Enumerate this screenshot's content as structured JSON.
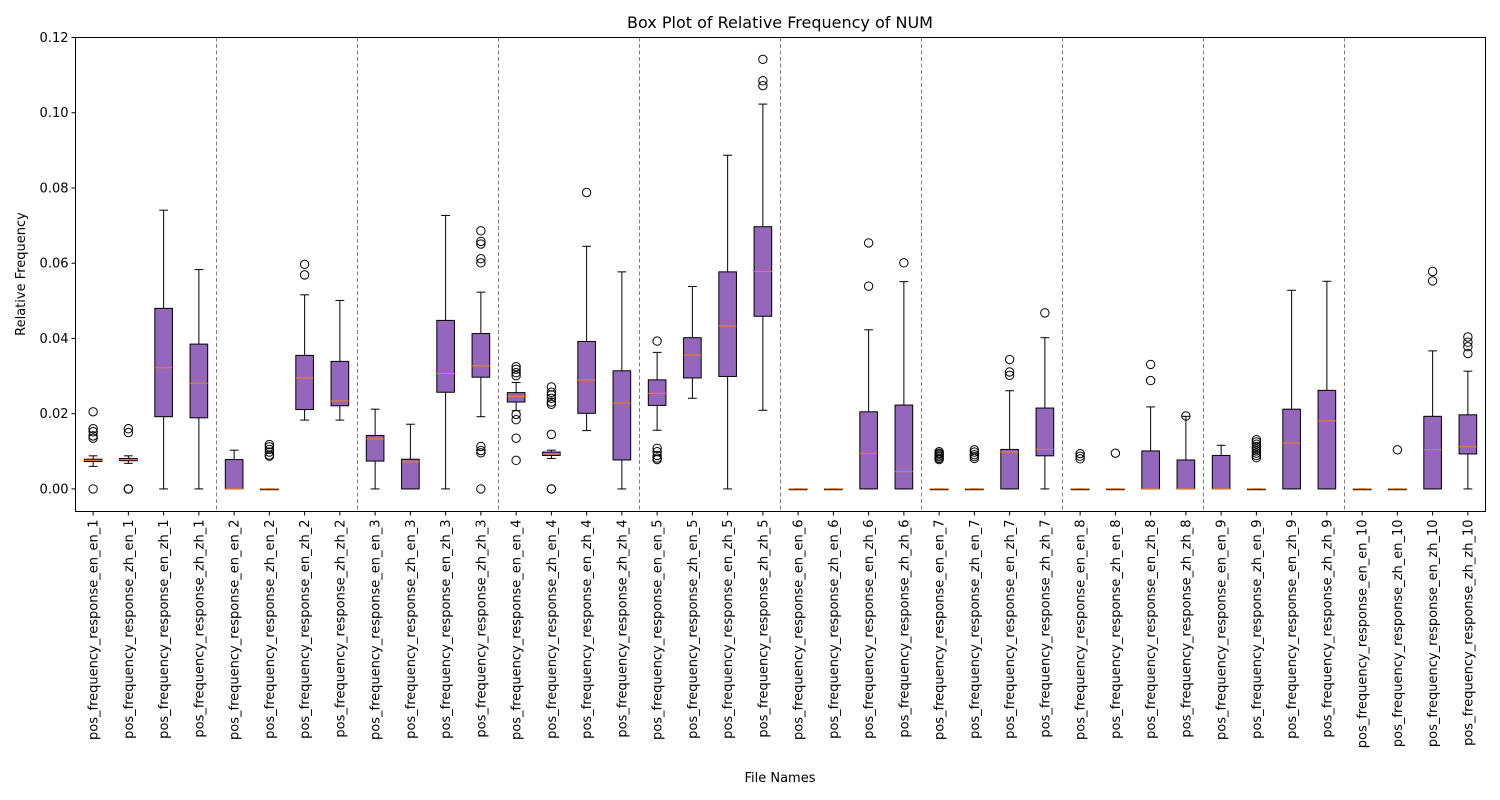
{
  "chart_data": {
    "type": "box",
    "title": "Box Plot of Relative Frequency of NUM",
    "xlabel": "File Names",
    "ylabel": "Relative Frequency",
    "ylim": [
      -0.006,
      0.12
    ],
    "yticks": [
      0.0,
      0.02,
      0.04,
      0.06,
      0.08,
      0.1,
      0.12
    ],
    "ytick_labels": [
      "0.00",
      "0.02",
      "0.04",
      "0.06",
      "0.08",
      "0.10",
      "0.12"
    ],
    "group_separators_after": [
      4,
      8,
      12,
      16,
      20,
      24,
      28,
      32,
      36
    ],
    "grid": false,
    "colors": {
      "box_fill": "#9467bd",
      "median": "#ff7f0e",
      "separator": "#808080"
    },
    "categories": [
      "pos_frequency_response_en_en_1",
      "pos_frequency_response_zh_en_1",
      "pos_frequency_response_en_zh_1",
      "pos_frequency_response_zh_zh_1",
      "pos_frequency_response_en_en_2",
      "pos_frequency_response_zh_en_2",
      "pos_frequency_response_en_zh_2",
      "pos_frequency_response_zh_zh_2",
      "pos_frequency_response_en_en_3",
      "pos_frequency_response_zh_en_3",
      "pos_frequency_response_en_zh_3",
      "pos_frequency_response_zh_zh_3",
      "pos_frequency_response_en_en_4",
      "pos_frequency_response_zh_en_4",
      "pos_frequency_response_en_zh_4",
      "pos_frequency_response_zh_zh_4",
      "pos_frequency_response_en_en_5",
      "pos_frequency_response_zh_en_5",
      "pos_frequency_response_en_zh_5",
      "pos_frequency_response_zh_zh_5",
      "pos_frequency_response_en_en_6",
      "pos_frequency_response_zh_en_6",
      "pos_frequency_response_en_zh_6",
      "pos_frequency_response_zh_zh_6",
      "pos_frequency_response_en_en_7",
      "pos_frequency_response_zh_en_7",
      "pos_frequency_response_en_zh_7",
      "pos_frequency_response_zh_zh_7",
      "pos_frequency_response_en_en_8",
      "pos_frequency_response_zh_en_8",
      "pos_frequency_response_en_zh_8",
      "pos_frequency_response_zh_zh_8",
      "pos_frequency_response_en_en_9",
      "pos_frequency_response_zh_en_9",
      "pos_frequency_response_en_zh_9",
      "pos_frequency_response_zh_zh_9",
      "pos_frequency_response_en_en_10",
      "pos_frequency_response_zh_en_10",
      "pos_frequency_response_en_zh_10",
      "pos_frequency_response_zh_zh_10"
    ],
    "boxes": [
      {
        "whislo": 0.006,
        "q1": 0.0073,
        "med": 0.0076,
        "q3": 0.0079,
        "whishi": 0.0088,
        "fliers": [
          0.0205,
          0.016,
          0.0152,
          0.0141,
          0.0135,
          0.0
        ]
      },
      {
        "whislo": 0.0068,
        "q1": 0.0075,
        "med": 0.0078,
        "q3": 0.0081,
        "whishi": 0.0088,
        "fliers": [
          0.016,
          0.015,
          0.0,
          0.0,
          0.0
        ]
      },
      {
        "whislo": 0.0,
        "q1": 0.0192,
        "med": 0.0322,
        "q3": 0.048,
        "whishi": 0.0741,
        "fliers": []
      },
      {
        "whislo": 0.0,
        "q1": 0.0189,
        "med": 0.0281,
        "q3": 0.0385,
        "whishi": 0.0583,
        "fliers": []
      },
      {
        "whislo": 0.0,
        "q1": 0.0,
        "med": 0.0,
        "q3": 0.0078,
        "whishi": 0.0103,
        "fliers": []
      },
      {
        "whislo": 0.0,
        "q1": 0.0,
        "med": 0.0,
        "q3": 0.0,
        "whishi": 0.0,
        "fliers": [
          0.0118,
          0.0112,
          0.0105,
          0.0098,
          0.009,
          0.0087
        ]
      },
      {
        "whislo": 0.0183,
        "q1": 0.0211,
        "med": 0.0295,
        "q3": 0.0355,
        "whishi": 0.0516,
        "fliers": [
          0.0597,
          0.0569
        ]
      },
      {
        "whislo": 0.0183,
        "q1": 0.0221,
        "med": 0.0234,
        "q3": 0.0339,
        "whishi": 0.0501,
        "fliers": []
      },
      {
        "whislo": 0.0,
        "q1": 0.0074,
        "med": 0.0133,
        "q3": 0.0142,
        "whishi": 0.0212,
        "fliers": []
      },
      {
        "whislo": 0.0,
        "q1": 0.0,
        "med": 0.0072,
        "q3": 0.0079,
        "whishi": 0.0172,
        "fliers": []
      },
      {
        "whislo": 0.0,
        "q1": 0.0257,
        "med": 0.0307,
        "q3": 0.0448,
        "whishi": 0.0727,
        "fliers": []
      },
      {
        "whislo": 0.0192,
        "q1": 0.0297,
        "med": 0.0327,
        "q3": 0.0413,
        "whishi": 0.0523,
        "fliers": [
          0.0686,
          0.0658,
          0.0651,
          0.0612,
          0.0601,
          0.0113,
          0.0102,
          0.0096,
          0.0
        ]
      },
      {
        "whislo": 0.0208,
        "q1": 0.0231,
        "med": 0.0246,
        "q3": 0.0256,
        "whishi": 0.0283,
        "fliers": [
          0.0325,
          0.0318,
          0.0309,
          0.0301,
          0.0198,
          0.0184,
          0.0135,
          0.0076
        ]
      },
      {
        "whislo": 0.0081,
        "q1": 0.0089,
        "med": 0.0093,
        "q3": 0.0098,
        "whishi": 0.0103,
        "fliers": [
          0.0271,
          0.0257,
          0.025,
          0.0241,
          0.0231,
          0.0225,
          0.0145,
          0.0,
          0.0
        ]
      },
      {
        "whislo": 0.0155,
        "q1": 0.0201,
        "med": 0.029,
        "q3": 0.0392,
        "whishi": 0.0645,
        "fliers": [
          0.0788
        ]
      },
      {
        "whislo": 0.0,
        "q1": 0.0077,
        "med": 0.0228,
        "q3": 0.0314,
        "whishi": 0.0577,
        "fliers": []
      },
      {
        "whislo": 0.0156,
        "q1": 0.0222,
        "med": 0.0254,
        "q3": 0.029,
        "whishi": 0.0363,
        "fliers": [
          0.0393,
          0.0108,
          0.0099,
          0.0089,
          0.0082,
          0.0078
        ]
      },
      {
        "whislo": 0.0241,
        "q1": 0.0295,
        "med": 0.0356,
        "q3": 0.0402,
        "whishi": 0.0538,
        "fliers": []
      },
      {
        "whislo": 0.0,
        "q1": 0.0299,
        "med": 0.0433,
        "q3": 0.0577,
        "whishi": 0.0887,
        "fliers": []
      },
      {
        "whislo": 0.0209,
        "q1": 0.0459,
        "med": 0.0578,
        "q3": 0.0697,
        "whishi": 0.1023,
        "fliers": [
          0.1142,
          0.1085,
          0.1072
        ]
      },
      {
        "whislo": 0.0,
        "q1": 0.0,
        "med": 0.0,
        "q3": 0.0,
        "whishi": 0.0,
        "fliers": []
      },
      {
        "whislo": 0.0,
        "q1": 0.0,
        "med": 0.0,
        "q3": 0.0,
        "whishi": 0.0,
        "fliers": []
      },
      {
        "whislo": 0.0,
        "q1": 0.0,
        "med": 0.0095,
        "q3": 0.0205,
        "whishi": 0.0423,
        "fliers": [
          0.0654,
          0.0539
        ]
      },
      {
        "whislo": 0.0,
        "q1": 0.0,
        "med": 0.0046,
        "q3": 0.0223,
        "whishi": 0.0551,
        "fliers": [
          0.0601
        ]
      },
      {
        "whislo": 0.0,
        "q1": 0.0,
        "med": 0.0,
        "q3": 0.0,
        "whishi": 0.0,
        "fliers": [
          0.0099,
          0.0095,
          0.0092,
          0.0088,
          0.0085,
          0.0081,
          0.0078
        ]
      },
      {
        "whislo": 0.0,
        "q1": 0.0,
        "med": 0.0,
        "q3": 0.0,
        "whishi": 0.0,
        "fliers": [
          0.0104,
          0.0098,
          0.0091,
          0.0086,
          0.0081
        ]
      },
      {
        "whislo": 0.0,
        "q1": 0.0,
        "med": 0.0098,
        "q3": 0.0105,
        "whishi": 0.0261,
        "fliers": [
          0.0344,
          0.0311,
          0.0302
        ]
      },
      {
        "whislo": 0.0,
        "q1": 0.0088,
        "med": 0.0105,
        "q3": 0.0215,
        "whishi": 0.0402,
        "fliers": [
          0.0468
        ]
      },
      {
        "whislo": 0.0,
        "q1": 0.0,
        "med": 0.0,
        "q3": 0.0,
        "whishi": 0.0,
        "fliers": [
          0.0094,
          0.0087,
          0.008
        ]
      },
      {
        "whislo": 0.0,
        "q1": 0.0,
        "med": 0.0,
        "q3": 0.0,
        "whishi": 0.0,
        "fliers": [
          0.0095
        ]
      },
      {
        "whislo": 0.0,
        "q1": 0.0,
        "med": 0.0,
        "q3": 0.0101,
        "whishi": 0.0218,
        "fliers": [
          0.0331,
          0.0288
        ]
      },
      {
        "whislo": 0.0,
        "q1": 0.0,
        "med": 0.0,
        "q3": 0.0077,
        "whishi": 0.0193,
        "fliers": [
          0.0194
        ]
      },
      {
        "whislo": 0.0,
        "q1": 0.0,
        "med": 0.0,
        "q3": 0.0089,
        "whishi": 0.0116,
        "fliers": []
      },
      {
        "whislo": 0.0,
        "q1": 0.0,
        "med": 0.0,
        "q3": 0.0,
        "whishi": 0.0,
        "fliers": [
          0.0131,
          0.0125,
          0.0119,
          0.0113,
          0.0107,
          0.0101,
          0.0095,
          0.0089,
          0.0083
        ]
      },
      {
        "whislo": 0.0,
        "q1": 0.0,
        "med": 0.0122,
        "q3": 0.0212,
        "whishi": 0.0528,
        "fliers": []
      },
      {
        "whislo": 0.0,
        "q1": 0.0,
        "med": 0.0181,
        "q3": 0.0262,
        "whishi": 0.0552,
        "fliers": []
      },
      {
        "whislo": 0.0,
        "q1": 0.0,
        "med": 0.0,
        "q3": 0.0,
        "whishi": 0.0,
        "fliers": []
      },
      {
        "whislo": 0.0,
        "q1": 0.0,
        "med": 0.0,
        "q3": 0.0,
        "whishi": 0.0,
        "fliers": [
          0.0104
        ]
      },
      {
        "whislo": 0.0,
        "q1": 0.0,
        "med": 0.0104,
        "q3": 0.0193,
        "whishi": 0.0367,
        "fliers": [
          0.0578,
          0.0553
        ]
      },
      {
        "whislo": 0.0,
        "q1": 0.0093,
        "med": 0.0112,
        "q3": 0.0197,
        "whishi": 0.0313,
        "fliers": [
          0.0404,
          0.039,
          0.0378,
          0.036
        ]
      }
    ]
  }
}
